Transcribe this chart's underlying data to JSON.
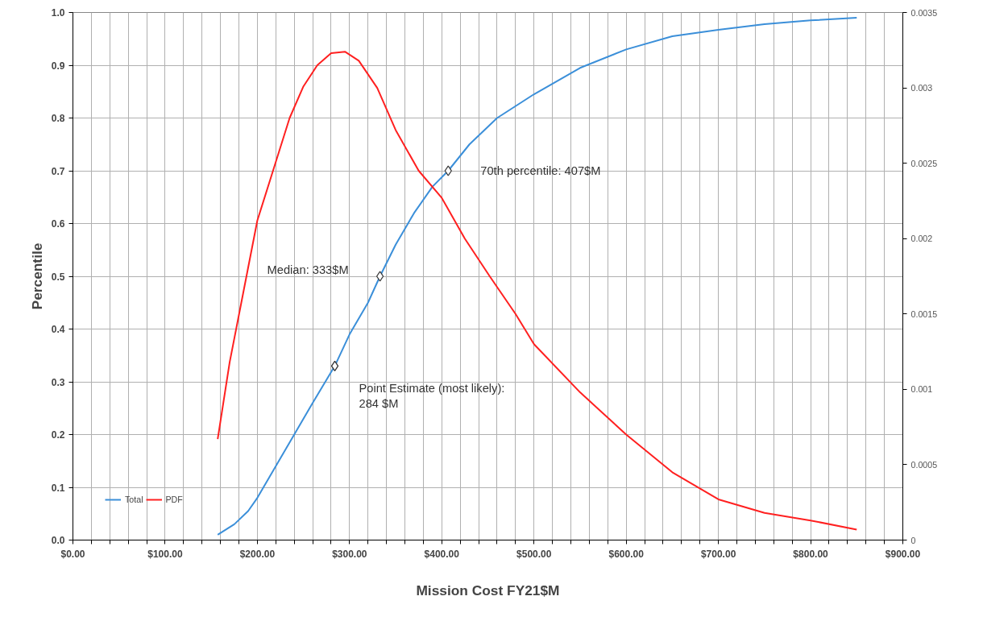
{
  "chart_data": {
    "type": "line",
    "xlabel": "Mission Cost FY21$M",
    "ylabel": "Percentile",
    "xlim": [
      0,
      900
    ],
    "ylim": [
      0,
      1.0
    ],
    "y2lim": [
      0,
      0.0035
    ],
    "xticks": [
      {
        "value": 0,
        "label": "$0.00"
      },
      {
        "value": 20,
        "label": null
      },
      {
        "value": 40,
        "label": null
      },
      {
        "value": 60,
        "label": null
      },
      {
        "value": 80,
        "label": null
      },
      {
        "value": 100,
        "label": "$100.00"
      },
      {
        "value": 120,
        "label": null
      },
      {
        "value": 140,
        "label": null
      },
      {
        "value": 160,
        "label": null
      },
      {
        "value": 180,
        "label": null
      },
      {
        "value": 200,
        "label": "$200.00"
      },
      {
        "value": 220,
        "label": null
      },
      {
        "value": 240,
        "label": null
      },
      {
        "value": 260,
        "label": null
      },
      {
        "value": 280,
        "label": null
      },
      {
        "value": 300,
        "label": "$300.00"
      },
      {
        "value": 320,
        "label": null
      },
      {
        "value": 340,
        "label": null
      },
      {
        "value": 360,
        "label": null
      },
      {
        "value": 380,
        "label": null
      },
      {
        "value": 400,
        "label": "$400.00"
      },
      {
        "value": 420,
        "label": null
      },
      {
        "value": 440,
        "label": null
      },
      {
        "value": 460,
        "label": null
      },
      {
        "value": 480,
        "label": null
      },
      {
        "value": 500,
        "label": "$500.00"
      },
      {
        "value": 520,
        "label": null
      },
      {
        "value": 540,
        "label": null
      },
      {
        "value": 560,
        "label": null
      },
      {
        "value": 580,
        "label": null
      },
      {
        "value": 600,
        "label": "$600.00"
      },
      {
        "value": 620,
        "label": null
      },
      {
        "value": 640,
        "label": null
      },
      {
        "value": 660,
        "label": null
      },
      {
        "value": 680,
        "label": null
      },
      {
        "value": 700,
        "label": "$700.00"
      },
      {
        "value": 720,
        "label": null
      },
      {
        "value": 740,
        "label": null
      },
      {
        "value": 760,
        "label": null
      },
      {
        "value": 780,
        "label": null
      },
      {
        "value": 800,
        "label": "$800.00"
      },
      {
        "value": 820,
        "label": null
      },
      {
        "value": 840,
        "label": null
      },
      {
        "value": 860,
        "label": null
      },
      {
        "value": 880,
        "label": null
      },
      {
        "value": 900,
        "label": "$900.00"
      }
    ],
    "yticks": [
      {
        "value": 0,
        "label": "0.0"
      },
      {
        "value": 0.1,
        "label": "0.1"
      },
      {
        "value": 0.2,
        "label": "0.2"
      },
      {
        "value": 0.3,
        "label": "0.3"
      },
      {
        "value": 0.4,
        "label": "0.4"
      },
      {
        "value": 0.5,
        "label": "0.5"
      },
      {
        "value": 0.6,
        "label": "0.6"
      },
      {
        "value": 0.7,
        "label": "0.7"
      },
      {
        "value": 0.8,
        "label": "0.8"
      },
      {
        "value": 0.9,
        "label": "0.9"
      },
      {
        "value": 1.0,
        "label": "1.0"
      }
    ],
    "y2ticks": [
      0,
      0.0005,
      0.001,
      0.0015,
      0.002,
      0.0025,
      0.003,
      0.0035
    ],
    "grid": true,
    "legend": "bottom left",
    "series": [
      {
        "name": "Total",
        "color": "#3b8fd9",
        "x": [
          157,
          175,
          190,
          200,
          220,
          240,
          260,
          284,
          300,
          320,
          333,
          350,
          370,
          390,
          407,
          430,
          460,
          500,
          550,
          600,
          650,
          700,
          750,
          800,
          850
        ],
        "values": [
          0.01,
          0.03,
          0.055,
          0.08,
          0.14,
          0.2,
          0.26,
          0.33,
          0.39,
          0.45,
          0.5,
          0.56,
          0.62,
          0.67,
          0.7,
          0.75,
          0.8,
          0.845,
          0.895,
          0.93,
          0.955,
          0.967,
          0.978,
          0.985,
          0.99
        ]
      },
      {
        "name": "PDF",
        "color": "#ff2020",
        "axis": "y2",
        "x": [
          157,
          170,
          185,
          200,
          217,
          235,
          250,
          265,
          280,
          295,
          310,
          330,
          350,
          375,
          400,
          425,
          452,
          480,
          500,
          550,
          600,
          650,
          700,
          750,
          800,
          850
        ],
        "values": [
          0.00067,
          0.00118,
          0.00165,
          0.00212,
          0.00245,
          0.0028,
          0.00301,
          0.00315,
          0.00323,
          0.00324,
          0.00318,
          0.003,
          0.00272,
          0.00245,
          0.00227,
          0.002,
          0.00175,
          0.0015,
          0.0013,
          0.00098,
          0.0007,
          0.00045,
          0.00027,
          0.00018,
          0.00013,
          7e-05
        ]
      },
      {
        "type": "scatter",
        "color": "#ffffff",
        "marker": "diamond",
        "x": [
          284,
          333,
          407
        ],
        "values": [
          0.33,
          0.5,
          0.7
        ]
      }
    ],
    "annotations": [
      {
        "text": "Point Estimate (most likely):\n284 $M",
        "x": 284,
        "y": 0.33
      },
      {
        "text": "Median: 333$M",
        "x": 333,
        "y": 0.5
      },
      {
        "text": "70th percentile: 407$M",
        "x": 407,
        "y": 0.7
      }
    ]
  }
}
